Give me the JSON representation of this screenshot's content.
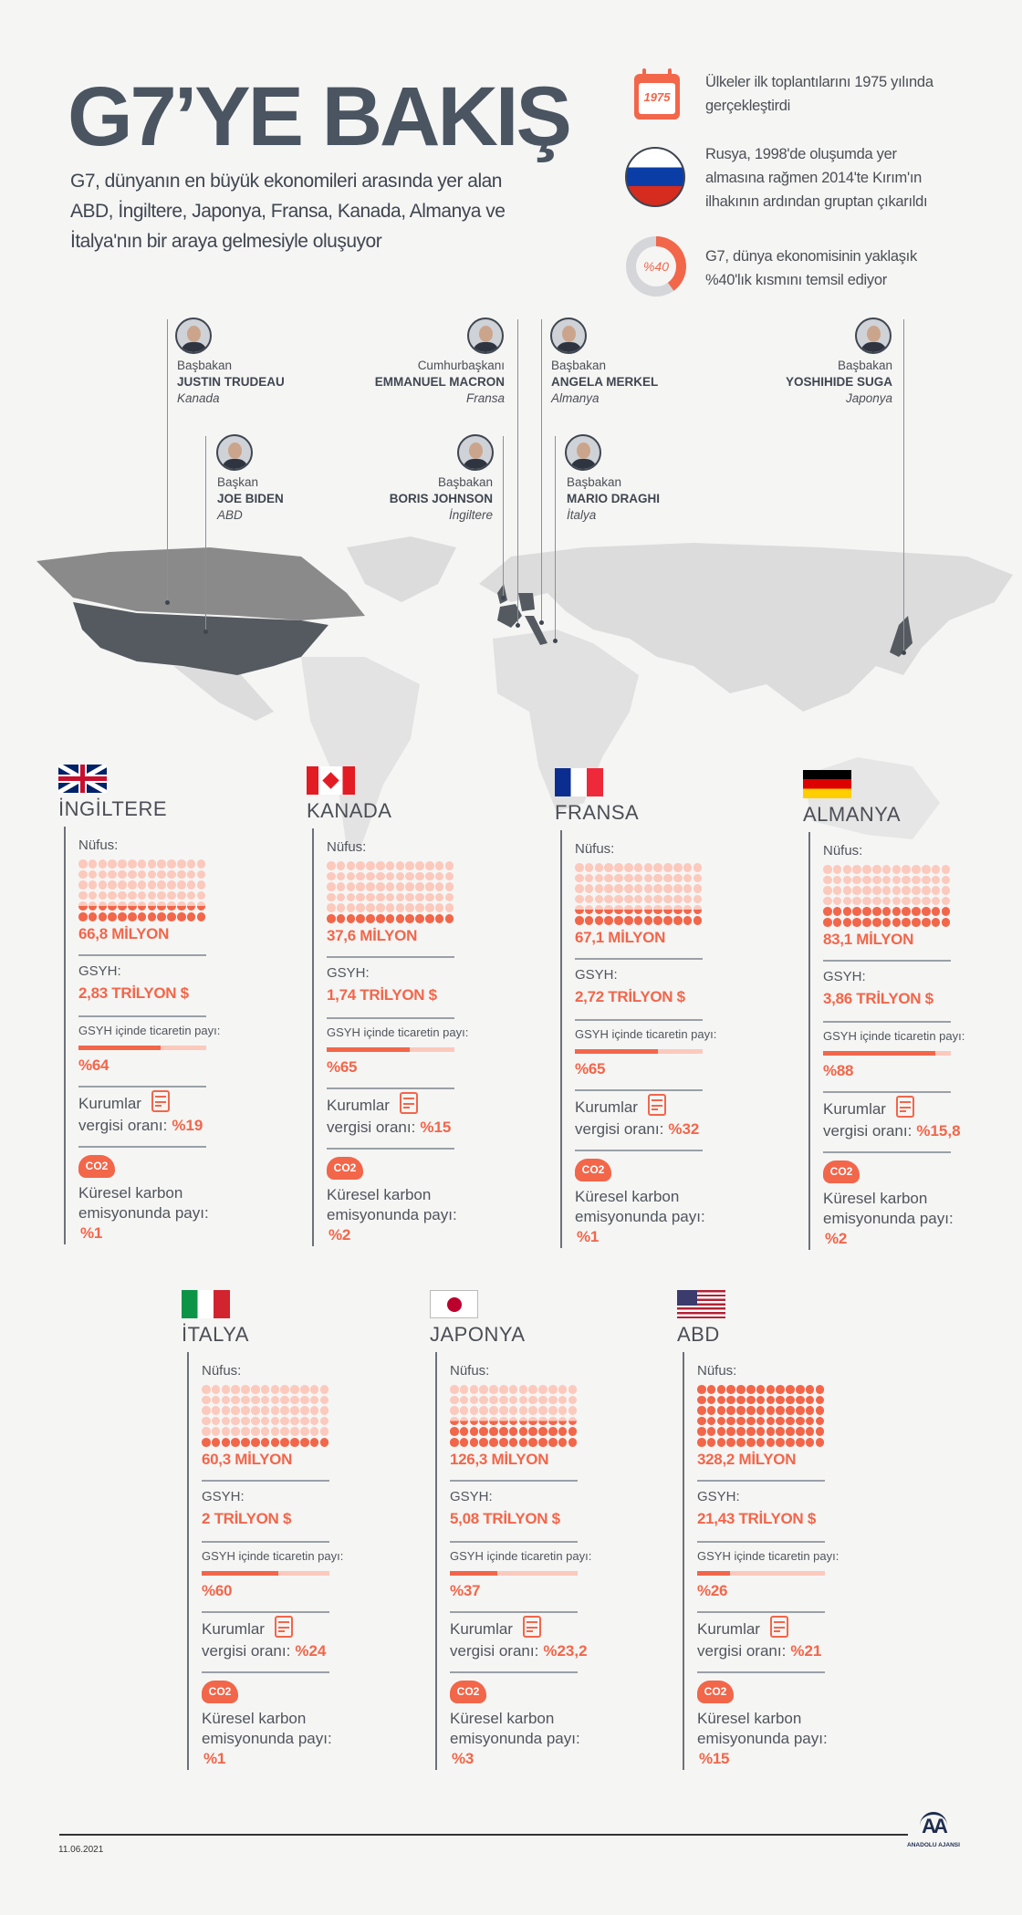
{
  "header": {
    "title": "G7’YE BAKIŞ",
    "subtitle_lines": [
      "G7, dünyanın en büyük ekonomileri arasında yer alan",
      "ABD, İngiltere, Japonya, Fransa, Kanada, Almanya ve",
      "İtalya'nın bir araya gelmesiyle oluşuyor"
    ]
  },
  "facts": [
    {
      "icon": "calendar-icon",
      "icon_text": "1975",
      "lines": [
        "Ülkeler ilk toplantılarını 1975 yılında",
        "gerçekleştirdi"
      ]
    },
    {
      "icon": "russia-flag-icon",
      "lines": [
        "Rusya, 1998'de oluşumda yer",
        "almasına rağmen 2014'te Kırım'ın",
        "ilhakının ardından gruptan çıkarıldı"
      ]
    },
    {
      "icon": "donut-icon",
      "icon_text": "%40",
      "share": 40,
      "lines": [
        "G7, dünya ekonomisinin yaklaşık",
        "%40'lık kısmını temsil ediyor"
      ]
    }
  ],
  "leaders": [
    {
      "role": "Başbakan",
      "name": "JUSTIN TRUDEAU",
      "country": "Kanada"
    },
    {
      "role": "Başkan",
      "name": "JOE BIDEN",
      "country": "ABD"
    },
    {
      "role": "Cumhurbaşkanı",
      "name": "EMMANUEL MACRON",
      "country": "Fransa"
    },
    {
      "role": "Başbakan",
      "name": "BORIS JOHNSON",
      "country": "İngiltere"
    },
    {
      "role": "Başbakan",
      "name": "ANGELA MERKEL",
      "country": "Almanya"
    },
    {
      "role": "Başbakan",
      "name": "MARIO DRAGHI",
      "country": "İtalya"
    },
    {
      "role": "Başbakan",
      "name": "YOSHIHIDE SUGA",
      "country": "Japonya"
    }
  ],
  "labels": {
    "population": "Nüfus:",
    "gdp": "GSYH:",
    "trade": "GSYH içinde ticaretin payı:",
    "tax_1": "Kurumlar",
    "tax_2": "vergisi oranı:",
    "carbon_1": "Küresel karbon",
    "carbon_2": "emisyonunda payı:",
    "co2": "CO2"
  },
  "countries": [
    {
      "name": "İNGİLTERE",
      "flag": "uk",
      "population": "66,8 MİLYON",
      "population_filled_rows": 1.5,
      "gdp": "2,83 TRİLYON $",
      "trade": "%64",
      "trade_pct": 64,
      "tax": "%19",
      "carbon": "%1"
    },
    {
      "name": "KANADA",
      "flag": "ca",
      "population": "37,6 MİLYON",
      "population_filled_rows": 1,
      "gdp": "1,74 TRİLYON $",
      "trade": "%65",
      "trade_pct": 65,
      "tax": "%15",
      "carbon": "%2"
    },
    {
      "name": "FRANSA",
      "flag": "fr",
      "population": "67,1 MİLYON",
      "population_filled_rows": 1.5,
      "gdp": "2,72 TRİLYON $",
      "trade": "%65",
      "trade_pct": 65,
      "tax": "%32",
      "carbon": "%1"
    },
    {
      "name": "ALMANYA",
      "flag": "de",
      "population": "83,1 MİLYON",
      "population_filled_rows": 2,
      "gdp": "3,86 TRİLYON $",
      "trade": "%88",
      "trade_pct": 88,
      "tax": "%15,8",
      "carbon": "%2"
    },
    {
      "name": "İTALYA",
      "flag": "it",
      "population": "60,3 MİLYON",
      "population_filled_rows": 1,
      "gdp": "2 TRİLYON $",
      "trade": "%60",
      "trade_pct": 60,
      "tax": "%24",
      "carbon": "%1"
    },
    {
      "name": "JAPONYA",
      "flag": "jp",
      "population": "126,3 MİLYON",
      "population_filled_rows": 2.5,
      "gdp": "5,08 TRİLYON $",
      "trade": "%37",
      "trade_pct": 37,
      "tax": "%23,2",
      "carbon": "%3"
    },
    {
      "name": "ABD",
      "flag": "us",
      "population": "328,2 MİLYON",
      "population_filled_rows": 6,
      "gdp": "21,43 TRİLYON $",
      "trade": "%26",
      "trade_pct": 26,
      "tax": "%21",
      "carbon": "%15"
    }
  ],
  "footer": {
    "date": "11.06.2021",
    "logo_text": "ANADOLU AJANSI"
  },
  "colors": {
    "accent": "#f2664a",
    "accent_pale": "#fcc9bd",
    "title": "#4a5561"
  }
}
